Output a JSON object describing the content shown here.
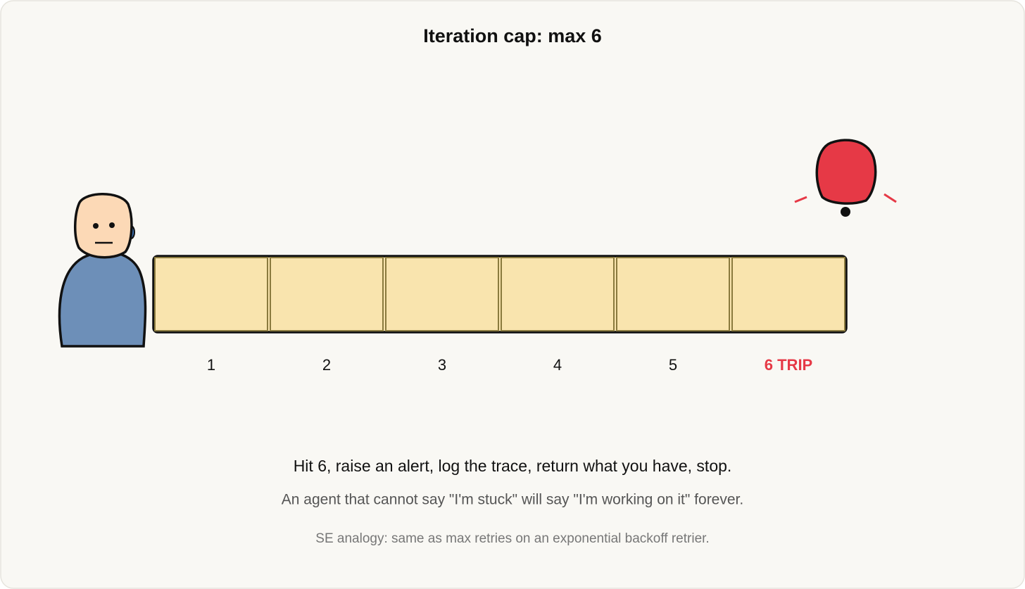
{
  "title": "Iteration cap: max 6",
  "slots": [
    {
      "label": "1",
      "tripped": false
    },
    {
      "label": "2",
      "tripped": false
    },
    {
      "label": "3",
      "tripped": false
    },
    {
      "label": "4",
      "tripped": false
    },
    {
      "label": "5",
      "tripped": false
    },
    {
      "label": "6 TRIP",
      "tripped": true
    }
  ],
  "caption": {
    "main": "Hit 6, raise an alert, log the trace, return what you have, stop.",
    "sub": "An agent that cannot say \"I'm stuck\" will say \"I'm working on it\" forever.",
    "note": "SE analogy: same as max retries on an exponential backoff retrier."
  }
}
